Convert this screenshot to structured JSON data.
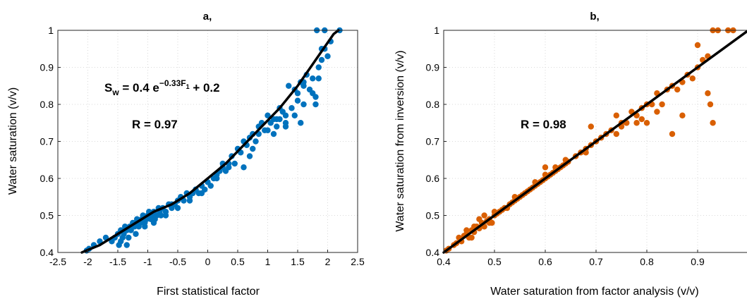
{
  "chart_data": [
    {
      "type": "scatter",
      "title": "a,",
      "xlabel": "First statistical factor",
      "ylabel": "Water saturation (v/v)",
      "xlim": [
        -2.5,
        2.5
      ],
      "ylim": [
        0.4,
        1.0
      ],
      "xticks": [
        "-2.5",
        "-2",
        "-1.5",
        "-1",
        "-0.5",
        "0",
        "0.5",
        "1",
        "1.5",
        "2",
        "2.5"
      ],
      "yticks": [
        "0.4",
        "0.5",
        "0.6",
        "0.7",
        "0.8",
        "0.9",
        "1"
      ],
      "grid": true,
      "marker_color": "#0072BD",
      "line_color": "#000000",
      "equation": {
        "lhs": "S",
        "lhs_sub": "w",
        "mid": " = 0.4 e",
        "exp": "−0.33F",
        "exp_sub": "1",
        "rhs": " + 0.2"
      },
      "annotation": "R = 0.97",
      "fit": {
        "x": [
          -2.1,
          -1.8,
          -1.5,
          -1.2,
          -0.9,
          -0.6,
          -0.3,
          0.0,
          0.3,
          0.6,
          0.9,
          1.2,
          1.5,
          1.8,
          2.1,
          2.18
        ],
        "y": [
          0.4,
          0.42,
          0.45,
          0.48,
          0.51,
          0.53,
          0.56,
          0.6,
          0.64,
          0.69,
          0.74,
          0.79,
          0.85,
          0.92,
          0.99,
          1.0
        ]
      },
      "points": {
        "x": [
          -2.02,
          -1.98,
          -1.9,
          -1.8,
          -1.7,
          -1.6,
          -1.55,
          -1.5,
          -1.48,
          -1.45,
          -1.42,
          -1.4,
          -1.38,
          -1.35,
          -1.32,
          -1.3,
          -1.28,
          -1.25,
          -1.22,
          -1.2,
          -1.18,
          -1.15,
          -1.12,
          -1.1,
          -1.08,
          -1.05,
          -1.02,
          -1.0,
          -0.98,
          -0.95,
          -0.92,
          -0.9,
          -0.88,
          -0.85,
          -0.82,
          -0.8,
          -0.78,
          -0.75,
          -0.7,
          -0.65,
          -0.6,
          -0.55,
          -0.5,
          -0.45,
          -0.4,
          -0.35,
          -0.3,
          -0.25,
          -0.2,
          -0.15,
          -0.1,
          -0.05,
          0.0,
          0.05,
          0.1,
          0.15,
          0.2,
          0.25,
          0.3,
          0.35,
          0.4,
          0.5,
          0.55,
          0.6,
          0.65,
          0.7,
          0.75,
          0.8,
          0.85,
          0.9,
          0.95,
          1.0,
          1.05,
          1.1,
          1.15,
          1.2,
          1.25,
          1.3,
          1.35,
          1.4,
          1.45,
          1.5,
          1.55,
          1.6,
          1.65,
          1.7,
          1.75,
          1.8,
          1.85,
          1.9,
          1.95,
          2.0,
          2.05,
          2.2,
          -1.45,
          -1.35,
          -1.2,
          -1.05,
          -0.9,
          -0.7,
          -0.5,
          -0.3,
          -0.1,
          0.15,
          0.35,
          0.45,
          0.7,
          0.85,
          1.0,
          1.2,
          1.3,
          1.45,
          1.6,
          1.75,
          1.85,
          1.9,
          1.95,
          0.6,
          0.75,
          1.1,
          1.3,
          1.5,
          1.55,
          1.8,
          1.82,
          1.6,
          1.15,
          -0.6,
          -0.2,
          0.25
        ],
        "y": [
          0.405,
          0.41,
          0.42,
          0.43,
          0.44,
          0.43,
          0.44,
          0.45,
          0.42,
          0.46,
          0.44,
          0.45,
          0.47,
          0.46,
          0.44,
          0.47,
          0.46,
          0.48,
          0.47,
          0.48,
          0.49,
          0.47,
          0.48,
          0.49,
          0.5,
          0.48,
          0.49,
          0.5,
          0.51,
          0.49,
          0.5,
          0.51,
          0.49,
          0.5,
          0.52,
          0.51,
          0.5,
          0.52,
          0.51,
          0.53,
          0.52,
          0.53,
          0.54,
          0.55,
          0.54,
          0.56,
          0.55,
          0.56,
          0.57,
          0.56,
          0.58,
          0.57,
          0.59,
          0.58,
          0.6,
          0.61,
          0.62,
          0.63,
          0.62,
          0.64,
          0.66,
          0.68,
          0.67,
          0.7,
          0.69,
          0.71,
          0.72,
          0.7,
          0.74,
          0.75,
          0.73,
          0.77,
          0.75,
          0.76,
          0.74,
          0.79,
          0.78,
          0.77,
          0.85,
          0.79,
          0.84,
          0.83,
          0.86,
          0.85,
          0.88,
          0.84,
          0.87,
          0.82,
          0.9,
          0.92,
          0.95,
          0.93,
          0.97,
          1.0,
          0.43,
          0.42,
          0.45,
          0.47,
          0.48,
          0.5,
          0.52,
          0.54,
          0.56,
          0.6,
          0.63,
          0.64,
          0.66,
          0.72,
          0.73,
          0.76,
          0.75,
          0.77,
          0.8,
          0.83,
          0.87,
          0.95,
          1.0,
          0.63,
          0.68,
          0.72,
          0.74,
          0.81,
          0.75,
          0.8,
          1.0,
          0.86,
          0.76,
          0.53,
          0.57,
          0.64
        ]
      }
    },
    {
      "type": "scatter",
      "title": "b,",
      "xlabel": "Water saturation from factor analysis (v/v)",
      "ylabel": "Water saturation from inversion (v/v)",
      "xlim": [
        0.4,
        1.0
      ],
      "ylim": [
        0.4,
        1.0
      ],
      "xticks": [
        "0.4",
        "0.5",
        "0.6",
        "0.7",
        "0.8",
        "0.9"
      ],
      "yticks": [
        "0.4",
        "0.5",
        "0.6",
        "0.7",
        "0.8",
        "0.9",
        "1"
      ],
      "grid": true,
      "marker_color": "#D95F02",
      "line_color": "#000000",
      "annotation": "R = 0.98",
      "fit": {
        "x": [
          0.4,
          1.0
        ],
        "y": [
          0.4,
          1.0
        ]
      },
      "points": {
        "x": [
          0.405,
          0.41,
          0.42,
          0.425,
          0.43,
          0.435,
          0.44,
          0.445,
          0.45,
          0.455,
          0.46,
          0.465,
          0.47,
          0.475,
          0.48,
          0.485,
          0.49,
          0.495,
          0.5,
          0.505,
          0.51,
          0.515,
          0.52,
          0.525,
          0.53,
          0.535,
          0.54,
          0.545,
          0.55,
          0.555,
          0.56,
          0.565,
          0.57,
          0.575,
          0.58,
          0.585,
          0.59,
          0.595,
          0.6,
          0.605,
          0.61,
          0.615,
          0.62,
          0.625,
          0.63,
          0.635,
          0.64,
          0.645,
          0.66,
          0.67,
          0.68,
          0.69,
          0.7,
          0.71,
          0.72,
          0.73,
          0.74,
          0.75,
          0.76,
          0.77,
          0.78,
          0.79,
          0.8,
          0.81,
          0.82,
          0.83,
          0.84,
          0.85,
          0.86,
          0.87,
          0.88,
          0.89,
          0.9,
          0.91,
          0.92,
          0.93,
          0.94,
          0.96,
          0.97,
          0.445,
          0.455,
          0.46,
          0.47,
          0.48,
          0.49,
          0.5,
          0.52,
          0.54,
          0.56,
          0.58,
          0.6,
          0.62,
          0.64,
          0.68,
          0.7,
          0.74,
          0.75,
          0.76,
          0.78,
          0.79,
          0.8,
          0.82,
          0.85,
          0.87,
          0.9,
          0.92,
          0.925,
          0.93,
          0.6,
          0.69
        ],
        "y": [
          0.405,
          0.41,
          0.42,
          0.425,
          0.44,
          0.43,
          0.445,
          0.45,
          0.44,
          0.46,
          0.455,
          0.47,
          0.465,
          0.48,
          0.47,
          0.485,
          0.49,
          0.48,
          0.5,
          0.505,
          0.51,
          0.515,
          0.52,
          0.52,
          0.53,
          0.535,
          0.54,
          0.545,
          0.55,
          0.555,
          0.56,
          0.565,
          0.57,
          0.575,
          0.58,
          0.585,
          0.59,
          0.595,
          0.6,
          0.605,
          0.61,
          0.615,
          0.62,
          0.625,
          0.63,
          0.635,
          0.64,
          0.645,
          0.66,
          0.67,
          0.68,
          0.69,
          0.7,
          0.71,
          0.72,
          0.73,
          0.72,
          0.75,
          0.75,
          0.78,
          0.77,
          0.79,
          0.8,
          0.8,
          0.83,
          0.8,
          0.84,
          0.85,
          0.84,
          0.86,
          0.88,
          0.87,
          0.9,
          0.92,
          0.93,
          1.0,
          1.0,
          1.0,
          1.0,
          0.46,
          0.44,
          0.47,
          0.49,
          0.5,
          0.48,
          0.51,
          0.52,
          0.55,
          0.56,
          0.59,
          0.61,
          0.63,
          0.65,
          0.67,
          0.7,
          0.77,
          0.74,
          0.75,
          0.75,
          0.76,
          0.75,
          0.78,
          0.72,
          0.77,
          0.96,
          0.83,
          0.8,
          0.75,
          0.63,
          0.74
        ]
      }
    }
  ]
}
